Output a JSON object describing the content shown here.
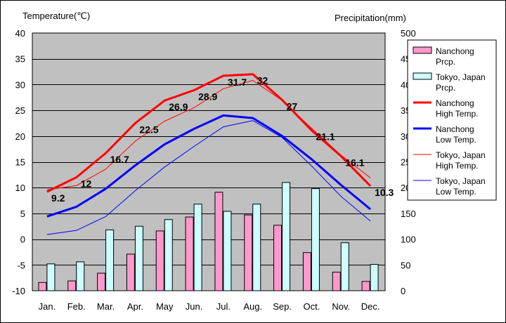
{
  "chart_data": {
    "type": "bar-line-combo",
    "left_axis_title": "Temperature(℃)",
    "right_axis_title": "Precipitation(mm)",
    "categories": [
      "Jan.",
      "Feb.",
      "Mar.",
      "Apr.",
      "May",
      "Jun.",
      "Jul.",
      "Aug.",
      "Sep.",
      "Oct.",
      "Nov.",
      "Dec."
    ],
    "left_axis": {
      "min": -10,
      "max": 40,
      "step": 5,
      "ticks": [
        "40",
        "35",
        "30",
        "25",
        "20",
        "15",
        "10",
        "5",
        "0",
        "-5",
        "-10"
      ]
    },
    "right_axis": {
      "min": 0,
      "max": 500,
      "step": 50,
      "ticks": [
        "500",
        "450",
        "400",
        "350",
        "300",
        "250",
        "200",
        "150",
        "100",
        "50",
        "0"
      ]
    },
    "grid": true,
    "legend_position": "right",
    "plot_background": "#c0c0c0",
    "bar_series": [
      {
        "name": "Nanchong Prcp.",
        "legend": [
          "Nanchong",
          "Prcp."
        ],
        "color": "#ff99cc",
        "values": [
          16,
          19,
          34,
          71,
          116,
          143,
          191,
          147,
          127,
          74,
          36,
          18
        ]
      },
      {
        "name": "Tokyo, Japan Prcp.",
        "legend": [
          "Tokyo, Japan",
          "Prcp."
        ],
        "color": "#ccffff",
        "values": [
          52,
          56,
          118,
          125,
          138,
          168,
          154,
          168,
          210,
          198,
          93,
          51
        ]
      }
    ],
    "line_series": [
      {
        "name": "Nanchong High Temp.",
        "legend": [
          "Nanchong",
          "High Temp."
        ],
        "color": "#ff0000",
        "width": 3,
        "values": [
          9.2,
          12,
          16.7,
          22.5,
          26.9,
          28.9,
          31.7,
          32,
          27,
          21.1,
          16.1,
          10.3
        ]
      },
      {
        "name": "Nanchong Low Temp.",
        "legend": [
          "Nanchong",
          "Low Temp."
        ],
        "color": "#0000ff",
        "width": 3,
        "values": [
          4.4,
          6.3,
          9.8,
          14.3,
          18.4,
          21.4,
          24,
          23.5,
          20,
          15.5,
          10.5,
          5.8
        ]
      },
      {
        "name": "Tokyo, Japan High Temp.",
        "legend": [
          "Tokyo, Japan",
          "High Temp."
        ],
        "color": "#ff0000",
        "width": 1,
        "values": [
          9.6,
          10.4,
          13.6,
          19,
          22.9,
          25.5,
          29.2,
          30.8,
          26.9,
          21.5,
          16.3,
          11.9
        ]
      },
      {
        "name": "Tokyo, Japan Low Temp.",
        "legend": [
          "Tokyo, Japan",
          "Low Temp."
        ],
        "color": "#0000ff",
        "width": 1,
        "values": [
          0.9,
          1.7,
          4.4,
          9.4,
          14,
          18,
          21.8,
          23,
          19.7,
          14.2,
          8.3,
          3.5
        ]
      }
    ],
    "data_labels": {
      "series": "Nanchong High Temp.",
      "labels": [
        "9.2",
        "12",
        "16.7",
        "22.5",
        "26.9",
        "28.9",
        "31.7",
        "32",
        "27",
        "21.1",
        "16.1",
        "10.3"
      ]
    }
  }
}
